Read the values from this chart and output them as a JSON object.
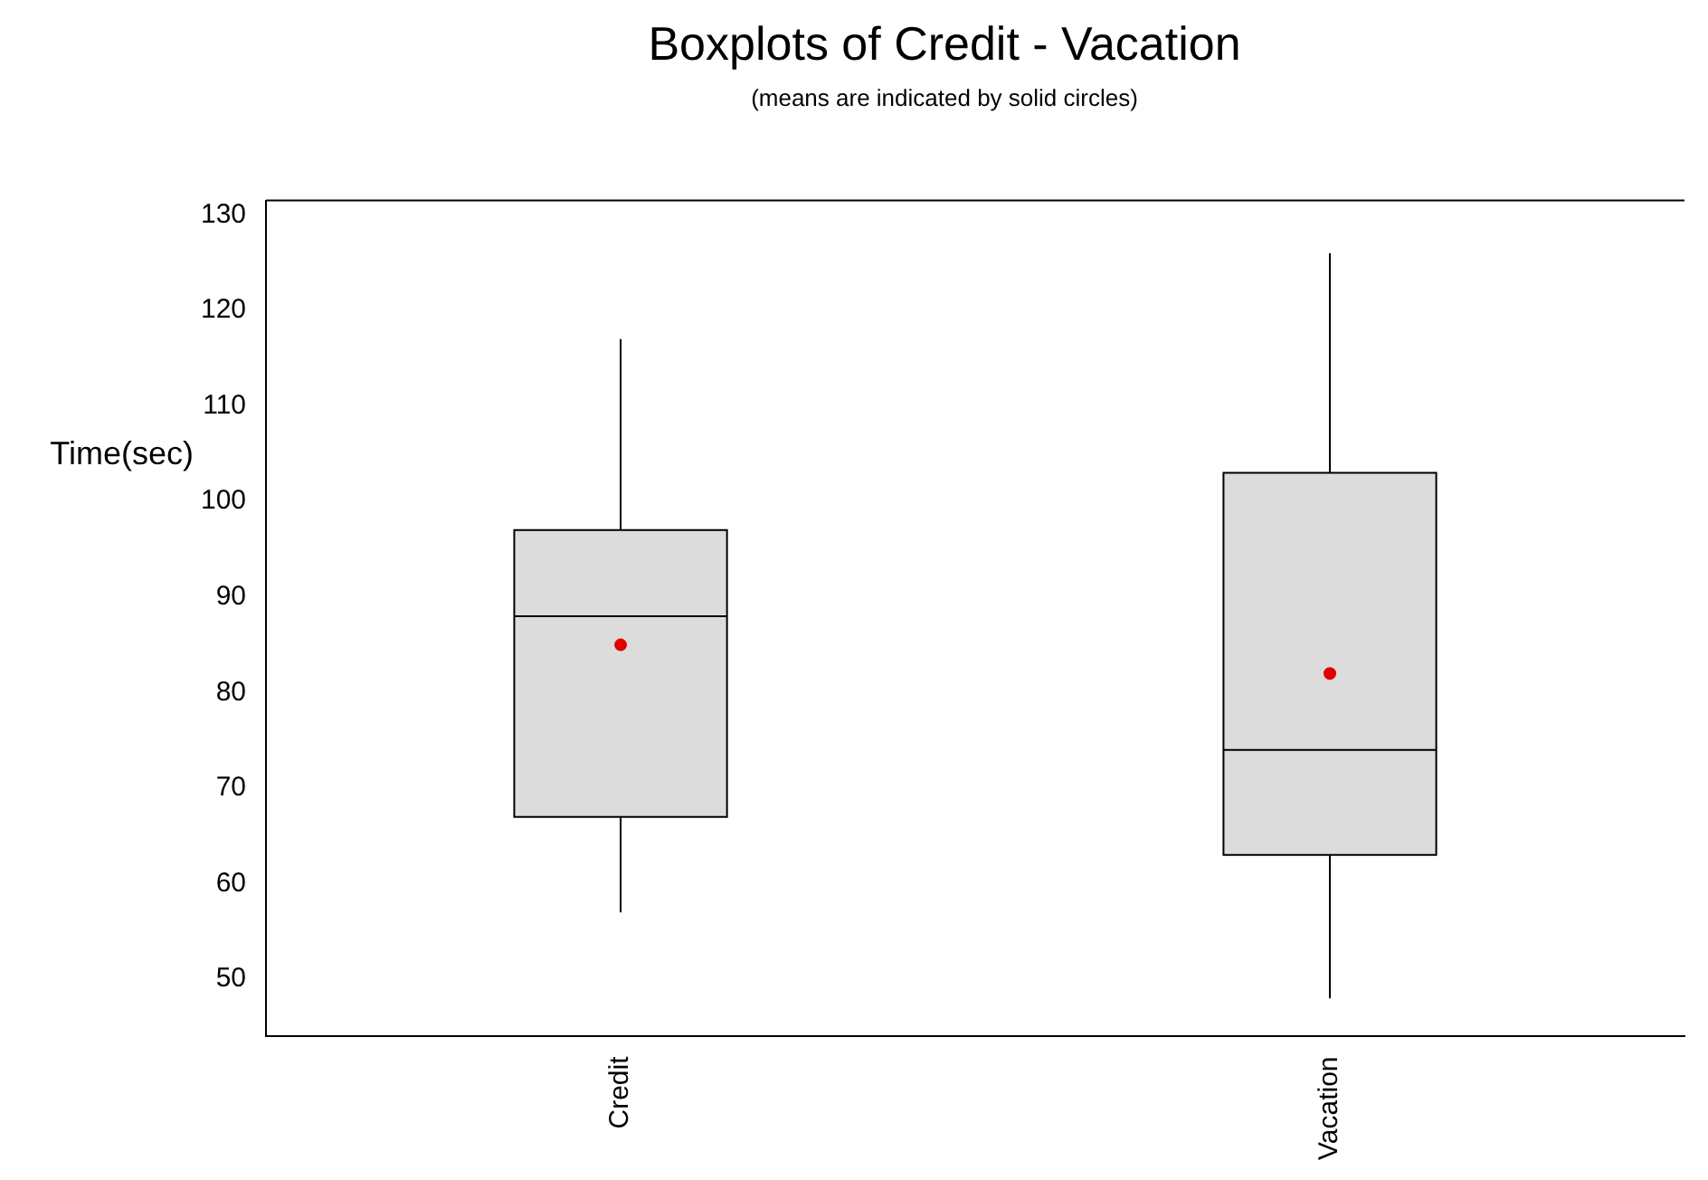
{
  "chart_data": {
    "type": "box",
    "title": "Boxplots of Credit - Vacation",
    "subtitle": "(means are indicated by solid circles)",
    "ylabel": "Time(sec)",
    "categories": [
      "Credit",
      "Vacation"
    ],
    "boxes": [
      {
        "low": 57,
        "q1": 67,
        "median": 88,
        "q3": 97,
        "high": 117
      },
      {
        "low": 48,
        "q1": 63,
        "median": 74,
        "q3": 103,
        "high": 126
      }
    ],
    "color": "#dcdcdc",
    "series": [
      {
        "type": "scatter",
        "x": [
          "Credit",
          "Vacation"
        ],
        "values": [
          85,
          82
        ],
        "color": "#e00000"
      }
    ],
    "ylim": [
      44,
      131.5
    ],
    "yticks": [
      50,
      60,
      70,
      80,
      90,
      100,
      110,
      120,
      130
    ],
    "marker": "circle"
  }
}
